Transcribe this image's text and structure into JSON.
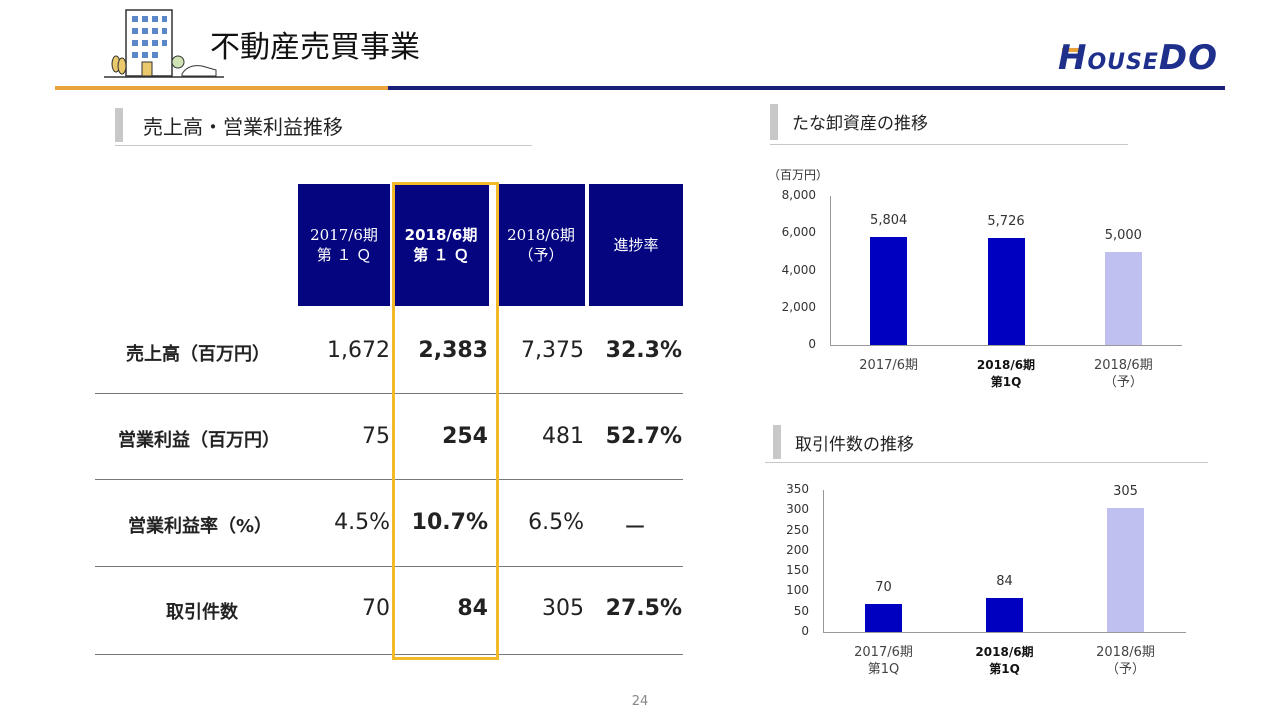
{
  "header": {
    "title": "不動産売買事業",
    "logo": {
      "main": "HOUSEDO"
    }
  },
  "table_section": {
    "title": "売上高・営業利益推移",
    "columns": [
      {
        "line1": "2017/6期",
        "line2": "第 １ Ｑ"
      },
      {
        "line1": "2018/6期",
        "line2": "第 １ Ｑ"
      },
      {
        "line1": "2018/6期",
        "line2": "（予）"
      },
      {
        "line1": "進捗率",
        "line2": ""
      }
    ],
    "rows": [
      {
        "label": "売上高（百万円）",
        "values": [
          "1,672",
          "2,383",
          "7,375",
          "32.3%"
        ]
      },
      {
        "label": "営業利益（百万円）",
        "values": [
          "75",
          "254",
          "481",
          "52.7%"
        ]
      },
      {
        "label": "営業利益率（%）",
        "values": [
          "4.5%",
          "10.7%",
          "6.5%",
          "ー"
        ]
      },
      {
        "label": "取引件数",
        "values": [
          "70",
          "84",
          "305",
          "27.5%"
        ]
      }
    ]
  },
  "colors": {
    "navy": "#050580",
    "bar_dark": "#0000c0",
    "bar_light": "#c0c0f0",
    "highlight": "#f2b928",
    "accent_orange": "#e8a33a"
  },
  "chart_data": [
    {
      "type": "bar",
      "title": "たな卸資産の推移",
      "unit": "（百万円）",
      "categories": [
        "2017/6期",
        "2018/6期 第1Q",
        "2018/6期 （予）"
      ],
      "category_lines": [
        [
          "2017/6期"
        ],
        [
          "2018/6期",
          "第1Q"
        ],
        [
          "2018/6期",
          "（予）"
        ]
      ],
      "values": [
        5804,
        5726,
        5000
      ],
      "value_labels": [
        "5,804",
        "5,726",
        "5,000"
      ],
      "ylim": [
        0,
        8000
      ],
      "yticks": [
        0,
        2000,
        4000,
        6000,
        8000
      ],
      "ytick_labels": [
        "0",
        "2,000",
        "4,000",
        "6,000",
        "8,000"
      ],
      "grid": false
    },
    {
      "type": "bar",
      "title": "取引件数の推移",
      "categories": [
        "2017/6期 第1Q",
        "2018/6期 第1Q",
        "2018/6期 （予）"
      ],
      "category_lines": [
        [
          "2017/6期",
          "第1Q"
        ],
        [
          "2018/6期",
          "第1Q"
        ],
        [
          "2018/6期",
          "（予）"
        ]
      ],
      "values": [
        70,
        84,
        305
      ],
      "value_labels": [
        "70",
        "84",
        "305"
      ],
      "ylim": [
        0,
        350
      ],
      "yticks": [
        0,
        50,
        100,
        150,
        200,
        250,
        300,
        350
      ],
      "ytick_labels": [
        "0",
        "50",
        "100",
        "150",
        "200",
        "250",
        "300",
        "350"
      ],
      "grid": false
    }
  ],
  "footer": {
    "page_number": "24"
  }
}
